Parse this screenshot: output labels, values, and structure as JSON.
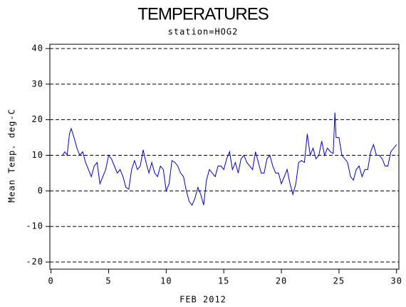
{
  "chart_data": {
    "type": "line",
    "title": "TEMPERATURES",
    "subtitle": "station=HOG2",
    "x_label": "FEB 2012",
    "y_label": "Mean Temp. deg-C",
    "xlim": [
      -0.1,
      30.2
    ],
    "xticks": [
      0,
      5,
      10,
      15,
      20,
      25,
      30
    ],
    "ylim": [
      -22,
      41.2
    ],
    "yticks": [
      -20,
      -10,
      0,
      10,
      20,
      30,
      40
    ],
    "grid": true,
    "x": [
      1.0,
      1.2,
      1.4,
      1.6,
      1.75,
      2.0,
      2.25,
      2.5,
      2.75,
      3.0,
      3.25,
      3.5,
      3.75,
      4.0,
      4.25,
      4.5,
      4.75,
      5.0,
      5.25,
      5.5,
      5.75,
      6.0,
      6.25,
      6.5,
      6.75,
      7.0,
      7.25,
      7.5,
      7.75,
      8.0,
      8.25,
      8.5,
      8.75,
      9.0,
      9.25,
      9.5,
      9.75,
      10.0,
      10.25,
      10.5,
      10.75,
      11.0,
      11.25,
      11.5,
      11.75,
      12.0,
      12.25,
      12.5,
      12.75,
      13.0,
      13.25,
      13.5,
      13.75,
      14.0,
      14.25,
      14.5,
      14.75,
      15.0,
      15.25,
      15.5,
      15.75,
      16.0,
      16.25,
      16.5,
      16.75,
      17.0,
      17.25,
      17.5,
      17.75,
      18.0,
      18.25,
      18.5,
      18.75,
      19.0,
      19.25,
      19.5,
      19.75,
      20.0,
      20.25,
      20.5,
      20.75,
      21.0,
      21.25,
      21.5,
      21.75,
      22.0,
      22.25,
      22.5,
      22.75,
      23.0,
      23.25,
      23.5,
      23.75,
      24.0,
      24.25,
      24.5,
      24.65,
      24.75,
      25.0,
      25.25,
      25.5,
      25.75,
      26.0,
      26.25,
      26.5,
      26.75,
      27.0,
      27.25,
      27.5,
      27.75,
      28.0,
      28.25,
      28.5,
      28.75,
      29.0,
      29.25,
      29.5,
      29.75,
      30.0
    ],
    "series": [
      {
        "name": "Mean Temp.",
        "color": "#0000cc",
        "values": [
          10,
          11,
          10,
          16,
          17.5,
          15,
          12,
          10,
          11,
          8,
          6,
          4,
          7,
          8,
          2,
          4,
          6,
          10,
          9,
          7,
          5,
          6,
          4,
          1,
          0.5,
          6,
          8.5,
          6,
          7,
          11.5,
          8,
          5,
          8,
          5,
          4,
          7,
          6,
          0,
          2,
          8.5,
          8,
          7,
          5,
          4,
          0,
          -3,
          -4,
          -2,
          1,
          -1,
          -4,
          3,
          6,
          5,
          4,
          7,
          7,
          6,
          9,
          11,
          6,
          8,
          5,
          9,
          10,
          8,
          7,
          6,
          11,
          8,
          5,
          5,
          9,
          10,
          7,
          5,
          5,
          2,
          4,
          6,
          2,
          -1,
          2,
          8,
          8.5,
          8,
          16,
          10,
          12,
          9,
          10,
          14,
          10,
          12,
          11,
          10.5,
          22,
          15,
          15,
          10,
          9,
          8,
          4,
          3,
          6,
          7,
          4,
          6,
          6,
          11,
          13,
          10,
          10,
          9,
          7,
          7,
          11,
          12,
          13
        ]
      }
    ]
  }
}
